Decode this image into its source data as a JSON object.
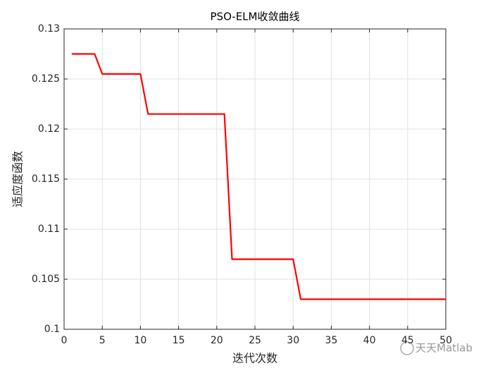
{
  "chart_data": {
    "type": "line",
    "title": "PSO-ELM收敛曲线",
    "xlabel": "迭代次数",
    "ylabel": "适应度函数",
    "x": [
      1,
      2,
      3,
      4,
      5,
      6,
      7,
      8,
      9,
      10,
      11,
      12,
      13,
      14,
      15,
      16,
      17,
      18,
      19,
      20,
      21,
      22,
      23,
      24,
      25,
      26,
      27,
      28,
      29,
      30,
      31,
      32,
      33,
      34,
      35,
      36,
      37,
      38,
      39,
      40,
      41,
      42,
      43,
      44,
      45,
      46,
      47,
      48,
      49,
      50
    ],
    "series": [
      {
        "color": "#ff0000",
        "values": [
          0.1275,
          0.1275,
          0.1275,
          0.1275,
          0.1255,
          0.1255,
          0.1255,
          0.1255,
          0.1255,
          0.1255,
          0.1215,
          0.1215,
          0.1215,
          0.1215,
          0.1215,
          0.1215,
          0.1215,
          0.1215,
          0.1215,
          0.1215,
          0.1215,
          0.107,
          0.107,
          0.107,
          0.107,
          0.107,
          0.107,
          0.107,
          0.107,
          0.107,
          0.103,
          0.103,
          0.103,
          0.103,
          0.103,
          0.103,
          0.103,
          0.103,
          0.103,
          0.103,
          0.103,
          0.103,
          0.103,
          0.103,
          0.103,
          0.103,
          0.103,
          0.103,
          0.103,
          0.103
        ]
      }
    ],
    "xlim": [
      0,
      50
    ],
    "xticks": [
      0,
      5,
      10,
      15,
      20,
      25,
      30,
      35,
      40,
      45,
      50
    ],
    "ylim": [
      0.1,
      0.13
    ],
    "yticks": [
      0.1,
      0.105,
      0.11,
      0.115,
      0.12,
      0.125,
      0.13
    ],
    "grid": true
  },
  "watermark": "天天Matlab"
}
